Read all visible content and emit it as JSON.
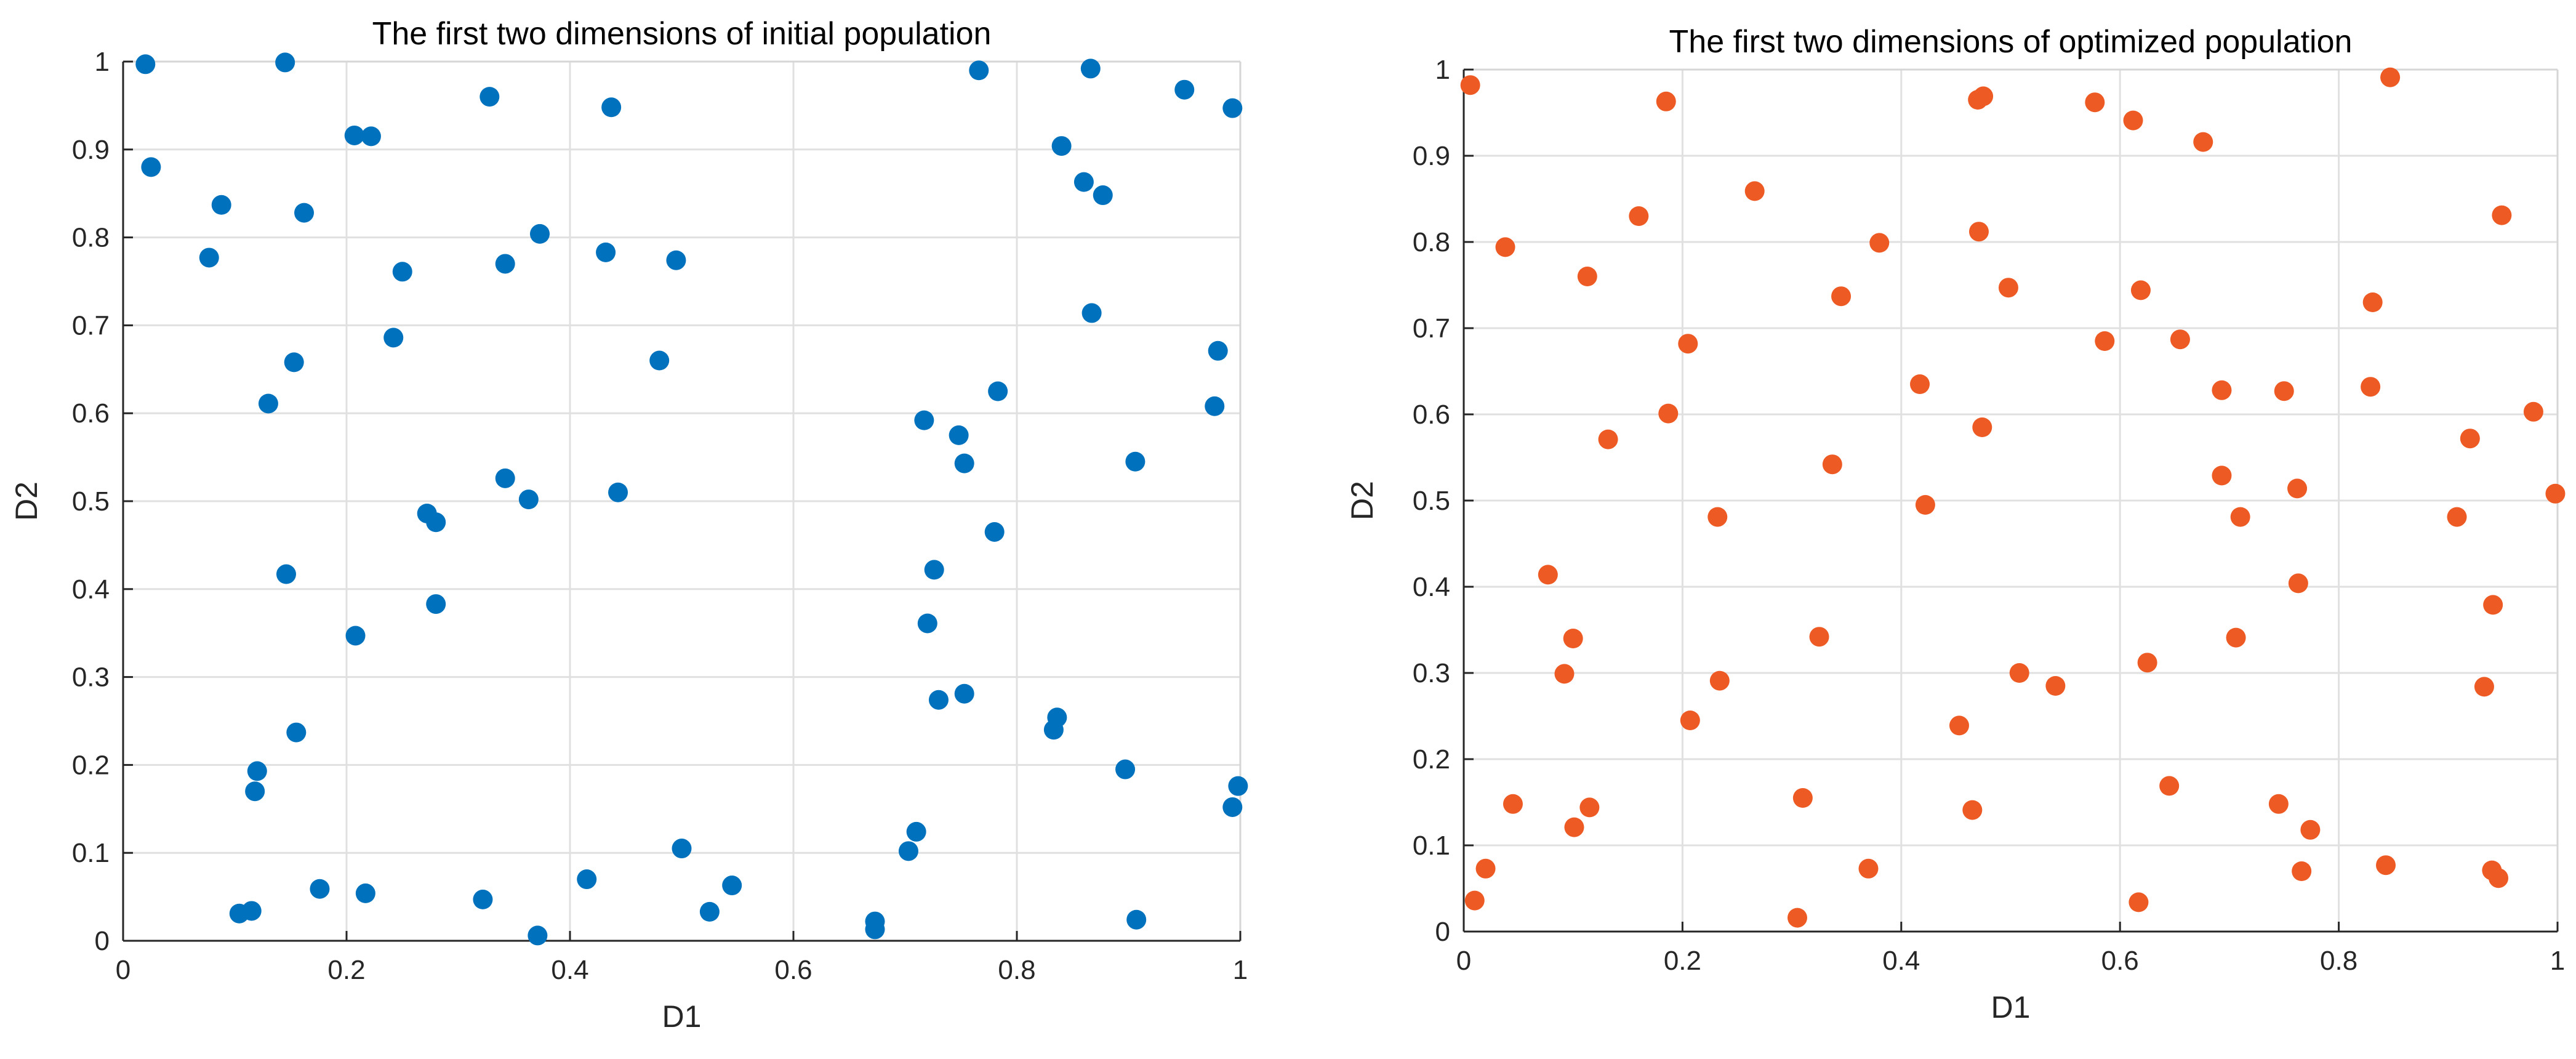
{
  "chart_data": [
    {
      "type": "scatter",
      "title": "The first two dimensions of initial population",
      "xlabel": "D1",
      "ylabel": "D2",
      "xlim": [
        0,
        1
      ],
      "ylim": [
        0,
        1
      ],
      "xticks": [
        0,
        0.2,
        0.4,
        0.6,
        0.8,
        1
      ],
      "xtick_labels": [
        "0",
        "0.2",
        "0.4",
        "0.6",
        "0.8",
        "1"
      ],
      "yticks": [
        0,
        0.1,
        0.2,
        0.3,
        0.4,
        0.5,
        0.6,
        0.7,
        0.8,
        0.9,
        1
      ],
      "ytick_labels": [
        "0",
        "0.1",
        "0.2",
        "0.3",
        "0.4",
        "0.5",
        "0.6",
        "0.7",
        "0.8",
        "0.9",
        "1"
      ],
      "grid": true,
      "color": "#0072BD",
      "points": [
        [
          0.02,
          0.997
        ],
        [
          0.145,
          0.999
        ],
        [
          0.025,
          0.88
        ],
        [
          0.088,
          0.837
        ],
        [
          0.162,
          0.828
        ],
        [
          0.077,
          0.777
        ],
        [
          0.207,
          0.916
        ],
        [
          0.222,
          0.915
        ],
        [
          0.328,
          0.96
        ],
        [
          0.437,
          0.948
        ],
        [
          0.25,
          0.761
        ],
        [
          0.373,
          0.804
        ],
        [
          0.342,
          0.77
        ],
        [
          0.432,
          0.783
        ],
        [
          0.495,
          0.774
        ],
        [
          0.242,
          0.686
        ],
        [
          0.153,
          0.658
        ],
        [
          0.13,
          0.611
        ],
        [
          0.48,
          0.66
        ],
        [
          0.342,
          0.526
        ],
        [
          0.363,
          0.502
        ],
        [
          0.443,
          0.51
        ],
        [
          0.272,
          0.486
        ],
        [
          0.28,
          0.476
        ],
        [
          0.146,
          0.417
        ],
        [
          0.28,
          0.383
        ],
        [
          0.208,
          0.347
        ],
        [
          0.155,
          0.237
        ],
        [
          0.12,
          0.193
        ],
        [
          0.118,
          0.17
        ],
        [
          0.104,
          0.031
        ],
        [
          0.115,
          0.034
        ],
        [
          0.176,
          0.059
        ],
        [
          0.217,
          0.054
        ],
        [
          0.322,
          0.047
        ],
        [
          0.371,
          0.006
        ],
        [
          0.415,
          0.07
        ],
        [
          0.5,
          0.105
        ],
        [
          0.525,
          0.033
        ],
        [
          0.545,
          0.063
        ],
        [
          0.673,
          0.022
        ],
        [
          0.673,
          0.013
        ],
        [
          0.703,
          0.102
        ],
        [
          0.71,
          0.124
        ],
        [
          0.717,
          0.592
        ],
        [
          0.748,
          0.575
        ],
        [
          0.753,
          0.543
        ],
        [
          0.783,
          0.625
        ],
        [
          0.78,
          0.465
        ],
        [
          0.726,
          0.422
        ],
        [
          0.72,
          0.361
        ],
        [
          0.73,
          0.274
        ],
        [
          0.753,
          0.281
        ],
        [
          0.836,
          0.254
        ],
        [
          0.833,
          0.24
        ],
        [
          0.897,
          0.195
        ],
        [
          0.907,
          0.024
        ],
        [
          0.993,
          0.152
        ],
        [
          0.998,
          0.176
        ],
        [
          0.906,
          0.545
        ],
        [
          0.977,
          0.608
        ],
        [
          0.98,
          0.671
        ],
        [
          0.867,
          0.714
        ],
        [
          0.84,
          0.904
        ],
        [
          0.86,
          0.863
        ],
        [
          0.877,
          0.848
        ],
        [
          0.766,
          0.99
        ],
        [
          0.866,
          0.992
        ],
        [
          0.95,
          0.968
        ],
        [
          0.993,
          0.947
        ]
      ]
    },
    {
      "type": "scatter",
      "title": "The first two dimensions of optimized population",
      "xlabel": "D1",
      "ylabel": "D2",
      "xlim": [
        0,
        1
      ],
      "ylim": [
        0,
        1
      ],
      "xticks": [
        0,
        0.2,
        0.4,
        0.6,
        0.8,
        1
      ],
      "xtick_labels": [
        "0",
        "0.2",
        "0.4",
        "0.6",
        "0.8",
        "1"
      ],
      "yticks": [
        0,
        0.1,
        0.2,
        0.3,
        0.4,
        0.5,
        0.6,
        0.7,
        0.8,
        0.9,
        1
      ],
      "ytick_labels": [
        "0",
        "0.1",
        "0.2",
        "0.3",
        "0.4",
        "0.5",
        "0.6",
        "0.7",
        "0.8",
        "0.9",
        "1"
      ],
      "grid": true,
      "color": "#EE5A24",
      "points": [
        [
          0.006,
          0.982
        ],
        [
          0.185,
          0.963
        ],
        [
          0.47,
          0.965
        ],
        [
          0.475,
          0.969
        ],
        [
          0.577,
          0.962
        ],
        [
          0.612,
          0.941
        ],
        [
          0.676,
          0.916
        ],
        [
          0.847,
          0.991
        ],
        [
          0.266,
          0.859
        ],
        [
          0.16,
          0.83
        ],
        [
          0.949,
          0.831
        ],
        [
          0.038,
          0.794
        ],
        [
          0.38,
          0.799
        ],
        [
          0.471,
          0.812
        ],
        [
          0.113,
          0.76
        ],
        [
          0.345,
          0.737
        ],
        [
          0.498,
          0.747
        ],
        [
          0.619,
          0.744
        ],
        [
          0.831,
          0.73
        ],
        [
          0.205,
          0.682
        ],
        [
          0.586,
          0.685
        ],
        [
          0.655,
          0.687
        ],
        [
          0.417,
          0.635
        ],
        [
          0.693,
          0.628
        ],
        [
          0.75,
          0.627
        ],
        [
          0.829,
          0.632
        ],
        [
          0.187,
          0.601
        ],
        [
          0.978,
          0.603
        ],
        [
          0.132,
          0.571
        ],
        [
          0.474,
          0.585
        ],
        [
          0.92,
          0.572
        ],
        [
          0.337,
          0.542
        ],
        [
          0.693,
          0.529
        ],
        [
          0.762,
          0.514
        ],
        [
          0.422,
          0.495
        ],
        [
          0.998,
          0.508
        ],
        [
          0.232,
          0.481
        ],
        [
          0.71,
          0.481
        ],
        [
          0.908,
          0.481
        ],
        [
          0.077,
          0.414
        ],
        [
          0.763,
          0.404
        ],
        [
          0.941,
          0.379
        ],
        [
          0.1,
          0.34
        ],
        [
          0.325,
          0.342
        ],
        [
          0.706,
          0.341
        ],
        [
          0.092,
          0.299
        ],
        [
          0.234,
          0.291
        ],
        [
          0.508,
          0.3
        ],
        [
          0.541,
          0.285
        ],
        [
          0.625,
          0.312
        ],
        [
          0.933,
          0.284
        ],
        [
          0.207,
          0.245
        ],
        [
          0.453,
          0.239
        ],
        [
          0.645,
          0.169
        ],
        [
          0.045,
          0.148
        ],
        [
          0.115,
          0.144
        ],
        [
          0.31,
          0.155
        ],
        [
          0.465,
          0.141
        ],
        [
          0.745,
          0.148
        ],
        [
          0.101,
          0.121
        ],
        [
          0.774,
          0.118
        ],
        [
          0.02,
          0.073
        ],
        [
          0.37,
          0.073
        ],
        [
          0.766,
          0.07
        ],
        [
          0.843,
          0.077
        ],
        [
          0.94,
          0.071
        ],
        [
          0.946,
          0.062
        ],
        [
          0.01,
          0.036
        ],
        [
          0.305,
          0.016
        ],
        [
          0.617,
          0.034
        ]
      ]
    }
  ]
}
